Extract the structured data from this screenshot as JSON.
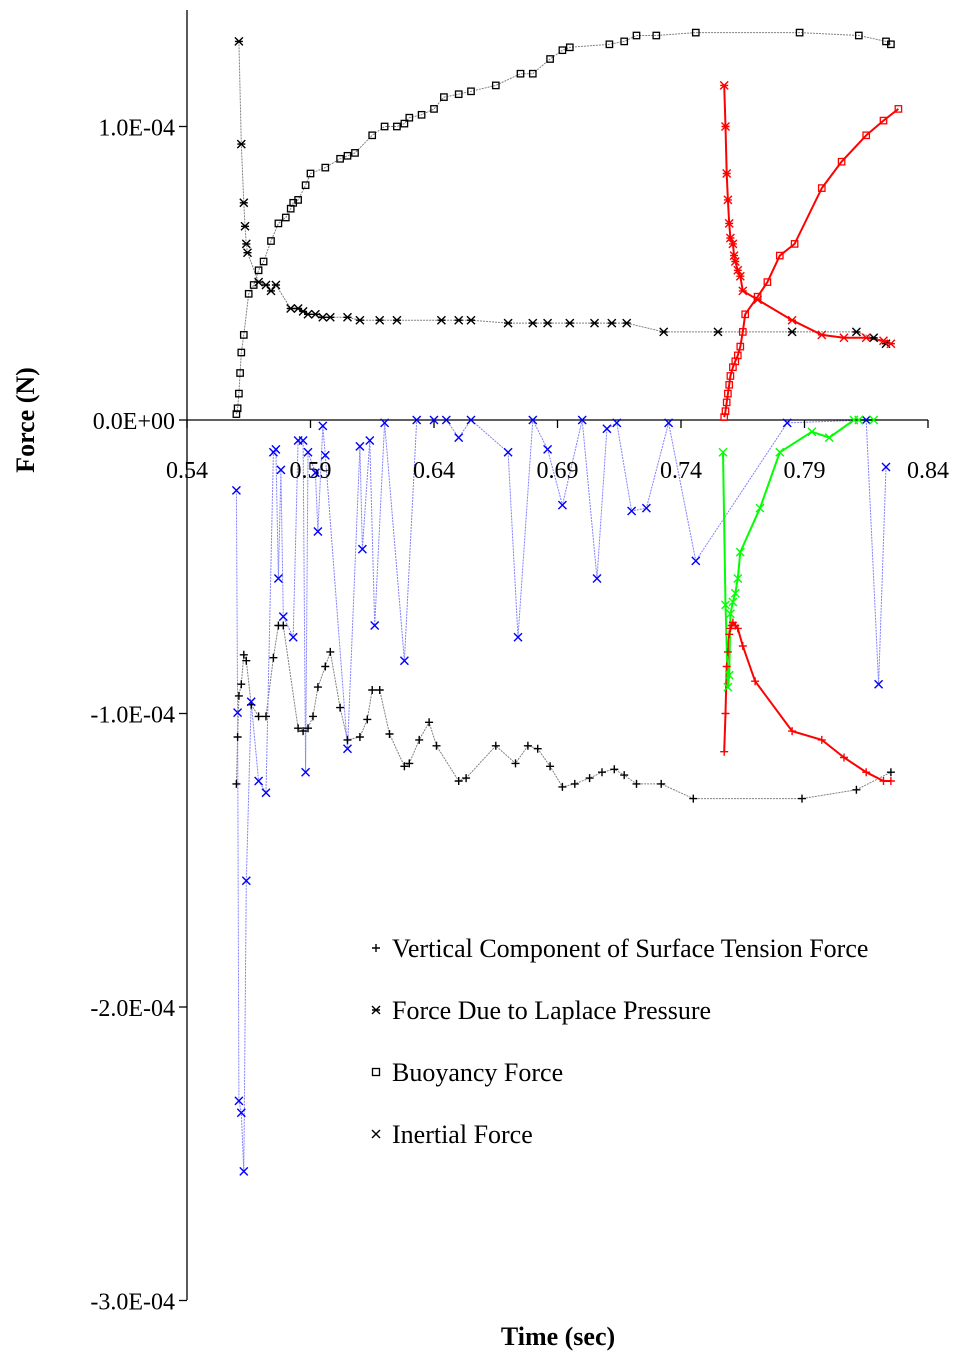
{
  "chart_data": {
    "type": "scatter",
    "title": "",
    "xlabel": "Time (sec)",
    "ylabel": "Force (N)",
    "xlim": [
      0.54,
      0.84
    ],
    "ylim": [
      -0.0003,
      0.000135
    ],
    "x_ticks": [
      "0.54",
      "0.59",
      "0.64",
      "0.69",
      "0.74",
      "0.79",
      "0.84"
    ],
    "x_tick_values": [
      0.54,
      0.59,
      0.64,
      0.69,
      0.74,
      0.79,
      0.84
    ],
    "y_ticks": [
      "1.0E-04",
      "0.0E+00",
      "-1.0E-04",
      "-2.0E-04",
      "-3.0E-04"
    ],
    "y_tick_values": [
      0.0001,
      0,
      -0.0001,
      -0.0002,
      -0.0003
    ],
    "grid": false,
    "legend_position": "bottom-right",
    "legend": [
      {
        "label": "Vertical Component of Surface Tension Force",
        "marker": "plus"
      },
      {
        "label": "Force Due to Laplace Pressure",
        "marker": "star"
      },
      {
        "label": "Buoyancy Force",
        "marker": "square"
      },
      {
        "label": "Inertial Force",
        "marker": "x"
      }
    ],
    "series": [
      {
        "marker": "square",
        "color": "#000000",
        "line_color": "#808080",
        "x": [
          0.56,
          0.5605,
          0.561,
          0.5615,
          0.562,
          0.563,
          0.565,
          0.567,
          0.569,
          0.571,
          0.574,
          0.577,
          0.58,
          0.582,
          0.583,
          0.585,
          0.588,
          0.59,
          0.596,
          0.602,
          0.605,
          0.608,
          0.615,
          0.62,
          0.625,
          0.628,
          0.63,
          0.635,
          0.64,
          0.644,
          0.65,
          0.655,
          0.665,
          0.675,
          0.68,
          0.687,
          0.692,
          0.695,
          0.711,
          0.717,
          0.722,
          0.73,
          0.746,
          0.788,
          0.812,
          0.823,
          0.825
        ],
        "y": [
          2e-06,
          4e-06,
          9e-06,
          1.6e-05,
          2.3e-05,
          2.9e-05,
          4.3e-05,
          4.6e-05,
          5.1e-05,
          5.4e-05,
          6.1e-05,
          6.7e-05,
          6.9e-05,
          7.2e-05,
          7.4e-05,
          7.5e-05,
          8e-05,
          8.4e-05,
          8.6e-05,
          8.9e-05,
          9e-05,
          9.1e-05,
          9.7e-05,
          0.0001,
          0.0001,
          0.000101,
          0.000103,
          0.000104,
          0.000106,
          0.00011,
          0.000111,
          0.000112,
          0.000114,
          0.000118,
          0.000118,
          0.000123,
          0.000126,
          0.000127,
          0.000128,
          0.000129,
          0.000131,
          0.000131,
          0.000132,
          0.000132,
          0.000131,
          0.000129,
          0.000128
        ]
      },
      {
        "marker": "star",
        "color": "#000000",
        "line_color": "#808080",
        "x": [
          0.561,
          0.562,
          0.563,
          0.5635,
          0.564,
          0.5645,
          0.569,
          0.572,
          0.574,
          0.576,
          0.582,
          0.585,
          0.587,
          0.589,
          0.592,
          0.595,
          0.598,
          0.605,
          0.61,
          0.618,
          0.625,
          0.643,
          0.65,
          0.655,
          0.67,
          0.68,
          0.686,
          0.695,
          0.705,
          0.712,
          0.718,
          0.733,
          0.755,
          0.785,
          0.811,
          0.818,
          0.823
        ],
        "y": [
          0.000129,
          9.4e-05,
          7.4e-05,
          6.6e-05,
          6e-05,
          5.7e-05,
          4.7e-05,
          4.6e-05,
          4.4e-05,
          4.6e-05,
          3.8e-05,
          3.8e-05,
          3.7e-05,
          3.6e-05,
          3.6e-05,
          3.5e-05,
          3.5e-05,
          3.5e-05,
          3.4e-05,
          3.4e-05,
          3.4e-05,
          3.4e-05,
          3.4e-05,
          3.4e-05,
          3.3e-05,
          3.3e-05,
          3.3e-05,
          3.3e-05,
          3.3e-05,
          3.3e-05,
          3.3e-05,
          3e-05,
          3e-05,
          3e-05,
          3e-05,
          2.8e-05,
          2.6e-05
        ]
      },
      {
        "marker": "plus",
        "color": "#000000",
        "line_color": "#808080",
        "x": [
          0.56,
          0.5605,
          0.561,
          0.562,
          0.563,
          0.564,
          0.566,
          0.569,
          0.572,
          0.575,
          0.577,
          0.579,
          0.585,
          0.587,
          0.589,
          0.591,
          0.593,
          0.596,
          0.598,
          0.602,
          0.605,
          0.61,
          0.613,
          0.615,
          0.618,
          0.622,
          0.628,
          0.63,
          0.634,
          0.638,
          0.641,
          0.65,
          0.653,
          0.665,
          0.673,
          0.678,
          0.682,
          0.687,
          0.692,
          0.697,
          0.703,
          0.708,
          0.713,
          0.717,
          0.722,
          0.732,
          0.745,
          0.789,
          0.811,
          0.825
        ],
        "y": [
          -0.000124,
          -0.000108,
          -9.4e-05,
          -9e-05,
          -8e-05,
          -8.2e-05,
          -9.7e-05,
          -0.000101,
          -0.000101,
          -8.1e-05,
          -7e-05,
          -7e-05,
          -0.000105,
          -0.000106,
          -0.000105,
          -0.000101,
          -9.1e-05,
          -8.4e-05,
          -7.9e-05,
          -9.8e-05,
          -0.000109,
          -0.000108,
          -0.000102,
          -9.2e-05,
          -9.2e-05,
          -0.000107,
          -0.000118,
          -0.000117,
          -0.000109,
          -0.000103,
          -0.000111,
          -0.000123,
          -0.000122,
          -0.000111,
          -0.000117,
          -0.000111,
          -0.000112,
          -0.000118,
          -0.000125,
          -0.000124,
          -0.000122,
          -0.00012,
          -0.000119,
          -0.000121,
          -0.000124,
          -0.000124,
          -0.000129,
          -0.000129,
          -0.000126,
          -0.00012
        ]
      },
      {
        "marker": "x",
        "color": "#0000ff",
        "line_color": "#8080ff",
        "x": [
          0.56,
          0.5605,
          0.561,
          0.562,
          0.563,
          0.564,
          0.566,
          0.569,
          0.572,
          0.575,
          0.576,
          0.577,
          0.578,
          0.579,
          0.583,
          0.585,
          0.587,
          0.588,
          0.589,
          0.592,
          0.593,
          0.595,
          0.596,
          0.605,
          0.61,
          0.611,
          0.614,
          0.616,
          0.62,
          0.628,
          0.633,
          0.64,
          0.645,
          0.65,
          0.655,
          0.67,
          0.674,
          0.68,
          0.686,
          0.692,
          0.7,
          0.706,
          0.71,
          0.714,
          0.72,
          0.726,
          0.735,
          0.746,
          0.783,
          0.815,
          0.82,
          0.823
        ],
        "y": [
          -2.4e-05,
          -9.97e-05,
          -0.000232,
          -0.000236,
          -0.000256,
          -0.000157,
          -9.6e-05,
          -0.000123,
          -0.000127,
          -1.1e-05,
          -1e-05,
          -5.4e-05,
          -1.7e-05,
          -6.7e-05,
          -7.4e-05,
          -7e-06,
          -7e-06,
          -0.00012,
          -1.1e-05,
          -1.8e-05,
          -3.8e-05,
          -2e-06,
          -1.2e-05,
          -0.000112,
          -9e-06,
          -4.4e-05,
          -7e-06,
          -7e-05,
          -1e-06,
          -8.2e-05,
          0.0,
          0.0,
          0.0,
          -6e-06,
          0.0,
          -1.1e-05,
          -7.4e-05,
          0.0,
          -1e-05,
          -2.9e-05,
          0.0,
          -5.4e-05,
          -3e-06,
          -1e-06,
          -3.1e-05,
          -3e-05,
          -1e-06,
          -4.8e-05,
          -1e-06,
          0.0,
          -9e-05,
          -1.6e-05
        ]
      },
      {
        "marker": "square",
        "color": "#ff0000",
        "line_color": "#ff0000",
        "x": [
          0.7575,
          0.758,
          0.7585,
          0.759,
          0.7595,
          0.76,
          0.761,
          0.762,
          0.763,
          0.764,
          0.765,
          0.766,
          0.771,
          0.775,
          0.78,
          0.786,
          0.797,
          0.805,
          0.815,
          0.822,
          0.828
        ],
        "y": [
          1e-06,
          3e-06,
          6e-06,
          9e-06,
          1.2e-05,
          1.5e-05,
          1.8e-05,
          2e-05,
          2.2e-05,
          2.5e-05,
          3e-05,
          3.6e-05,
          4.2e-05,
          4.7e-05,
          5.6e-05,
          6e-05,
          7.9e-05,
          8.8e-05,
          9.7e-05,
          0.000102,
          0.000106
        ]
      },
      {
        "marker": "star",
        "color": "#ff0000",
        "line_color": "#ff0000",
        "x": [
          0.7575,
          0.758,
          0.7585,
          0.759,
          0.7595,
          0.76,
          0.761,
          0.7615,
          0.762,
          0.763,
          0.764,
          0.765,
          0.771,
          0.785,
          0.797,
          0.806,
          0.815,
          0.822,
          0.825
        ],
        "y": [
          0.000114,
          0.0001,
          8.4e-05,
          7.5e-05,
          6.7e-05,
          6.2e-05,
          6e-05,
          5.6e-05,
          5.4e-05,
          5.1e-05,
          4.9e-05,
          4.4e-05,
          4.1e-05,
          3.4e-05,
          2.9e-05,
          2.8e-05,
          2.8e-05,
          2.7e-05,
          2.6e-05
        ]
      },
      {
        "marker": "plus",
        "color": "#ff0000",
        "line_color": "#ff0000",
        "x": [
          0.7575,
          0.758,
          0.7585,
          0.759,
          0.7595,
          0.76,
          0.7605,
          0.761,
          0.762,
          0.763,
          0.765,
          0.77,
          0.785,
          0.797,
          0.806,
          0.815,
          0.822,
          0.825
        ],
        "y": [
          -0.000113,
          -0.0001,
          -8.4e-05,
          -7.9e-05,
          -7.3e-05,
          -7.1e-05,
          -7e-05,
          -6.9e-05,
          -7e-05,
          -7.1e-05,
          -7.7e-05,
          -8.9e-05,
          -0.000106,
          -0.000109,
          -0.000115,
          -0.00012,
          -0.000123,
          -0.000123
        ]
      },
      {
        "marker": "x",
        "color": "#00ff00",
        "line_color": "#00ff00",
        "x": [
          0.757,
          0.758,
          0.759,
          0.7595,
          0.76,
          0.761,
          0.762,
          0.763,
          0.764,
          0.772,
          0.78,
          0.793,
          0.8,
          0.81,
          0.812,
          0.818
        ],
        "y": [
          -1.1e-05,
          -6.3e-05,
          -9.1e-05,
          -8.7e-05,
          -6.6e-05,
          -6.2e-05,
          -5.9e-05,
          -5.4e-05,
          -4.5e-05,
          -3e-05,
          -1.1e-05,
          -4e-06,
          -6e-06,
          0.0,
          0.0,
          0.0
        ]
      }
    ]
  }
}
